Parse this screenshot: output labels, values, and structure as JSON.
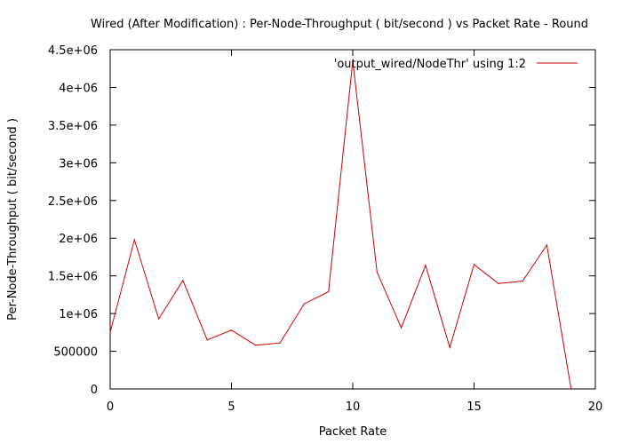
{
  "chart_data": {
    "type": "line",
    "title": "Wired (After Modification) : Per-Node-Throughput ( bit/second ) vs Packet Rate - Round",
    "xlabel": "Packet Rate",
    "ylabel": "Per-Node-Throughput ( bit/second )",
    "xlim": [
      0,
      20
    ],
    "ylim": [
      0,
      4500000
    ],
    "x_ticks": [
      0,
      5,
      10,
      15,
      20
    ],
    "x_tick_labels": [
      "0",
      "5",
      "10",
      "15",
      "20"
    ],
    "y_ticks": [
      0,
      500000,
      1000000,
      1500000,
      2000000,
      2500000,
      3000000,
      3500000,
      4000000,
      4500000
    ],
    "y_tick_labels": [
      "0",
      "500000",
      "1e+06",
      "1.5e+06",
      "2e+06",
      "2.5e+06",
      "3e+06",
      "3.5e+06",
      "4e+06",
      "4.5e+06"
    ],
    "grid": false,
    "legend_position": "top-right",
    "series": [
      {
        "name": "'output_wired/NodeThr' using 1:2",
        "color": "#cc0000",
        "x": [
          0,
          1,
          2,
          3,
          4,
          5,
          6,
          7,
          8,
          9,
          10,
          11,
          12,
          13,
          14,
          15,
          16,
          17,
          18,
          19
        ],
        "y": [
          750000,
          1980000,
          930000,
          1440000,
          650000,
          780000,
          580000,
          610000,
          1130000,
          1290000,
          4350000,
          1550000,
          810000,
          1640000,
          550000,
          1650000,
          1400000,
          1430000,
          1910000,
          0
        ]
      }
    ]
  }
}
